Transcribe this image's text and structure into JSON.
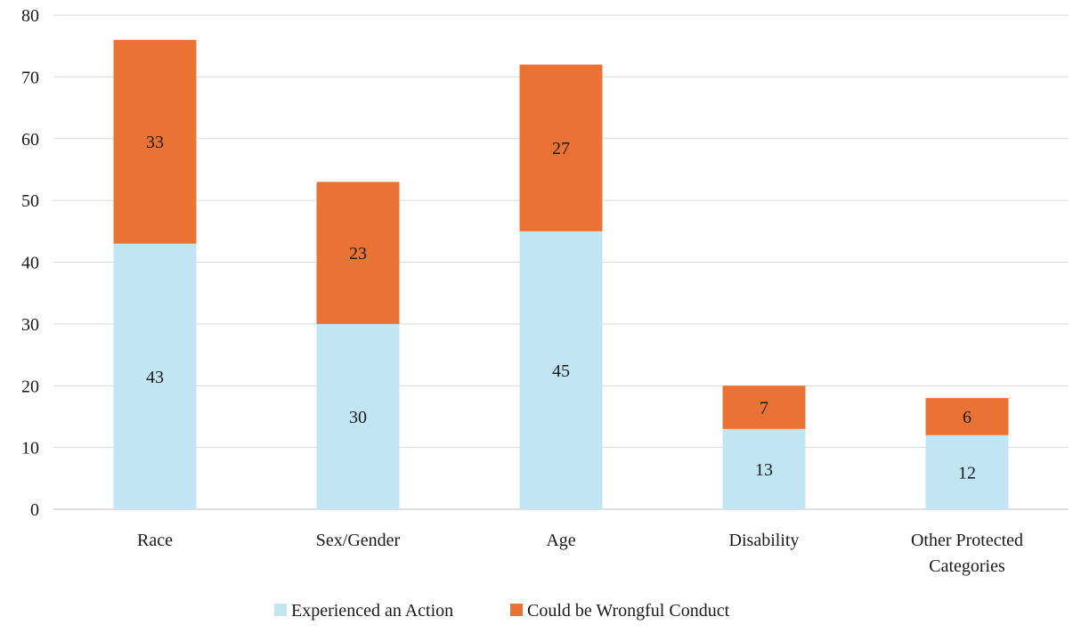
{
  "chart_data": {
    "type": "bar",
    "stacked": true,
    "categories": [
      "Race",
      "Sex/Gender",
      "Age",
      "Disability",
      "Other Protected Categories"
    ],
    "category_lines": [
      [
        "Race"
      ],
      [
        "Sex/Gender"
      ],
      [
        "Age"
      ],
      [
        "Disability"
      ],
      [
        "Other Protected",
        "Categories"
      ]
    ],
    "series": [
      {
        "name": "Experienced an Action",
        "values": [
          43,
          30,
          45,
          13,
          12
        ],
        "color": "#c2e5f4"
      },
      {
        "name": "Could be Wrongful Conduct",
        "values": [
          33,
          23,
          27,
          7,
          6
        ],
        "color": "#ea7234"
      }
    ],
    "ylim": [
      0,
      80
    ],
    "yticks": [
      0,
      10,
      20,
      30,
      40,
      50,
      60,
      70,
      80
    ],
    "grid": true,
    "legend_position": "bottom",
    "title": "",
    "xlabel": "",
    "ylabel": ""
  }
}
